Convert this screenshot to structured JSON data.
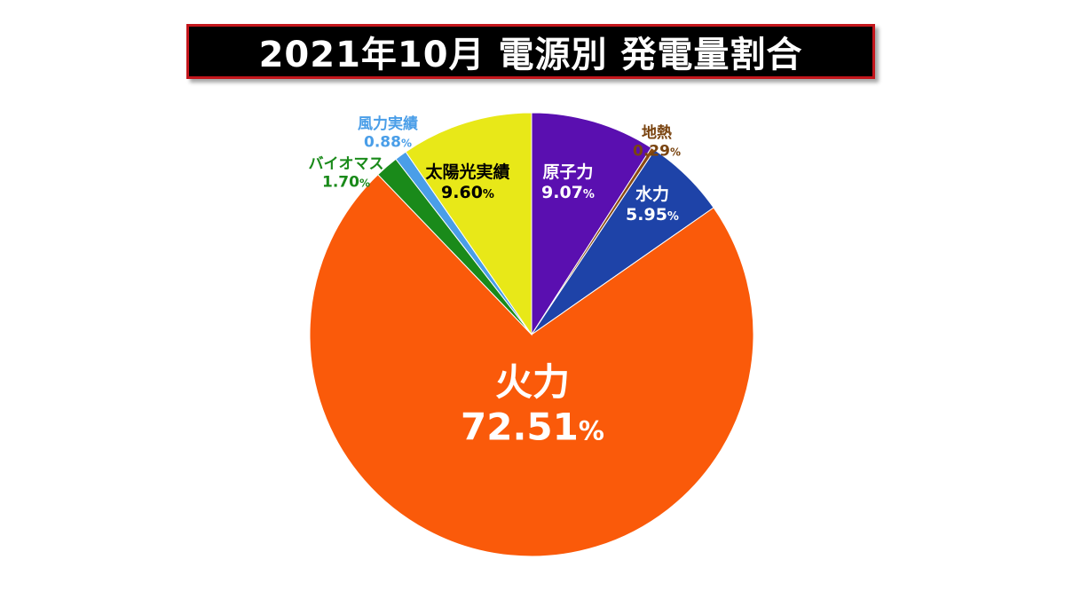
{
  "title": "2021年10月 電源別 発電量割合",
  "chart_data": {
    "type": "pie",
    "title": "2021年10月 電源別 発電量割合",
    "unit": "%",
    "start_angle_deg": 0,
    "direction": "clockwise",
    "slices": [
      {
        "name": "原子力",
        "value": 9.07,
        "value_label": "9.07",
        "color": "#5a0fb0",
        "label_color": "#ffffff"
      },
      {
        "name": "地熱",
        "value": 0.29,
        "value_label": "0.29",
        "color": "#8a4a12",
        "label_color": "#7a4410"
      },
      {
        "name": "水力",
        "value": 5.95,
        "value_label": "5.95",
        "color": "#1e43a8",
        "label_color": "#ffffff"
      },
      {
        "name": "火力",
        "value": 72.51,
        "value_label": "72.51",
        "color": "#fa5a0a",
        "label_color": "#ffffff"
      },
      {
        "name": "バイオマス",
        "value": 1.7,
        "value_label": "1.70",
        "color": "#1a8a1a",
        "label_color": "#1a8a1a"
      },
      {
        "name": "風力実績",
        "value": 0.88,
        "value_label": "0.88",
        "color": "#4a9ee8",
        "label_color": "#4a9ee8"
      },
      {
        "name": "太陽光実績",
        "value": 9.6,
        "value_label": "9.60",
        "color": "#e8e818",
        "label_color": "#000000"
      }
    ]
  }
}
